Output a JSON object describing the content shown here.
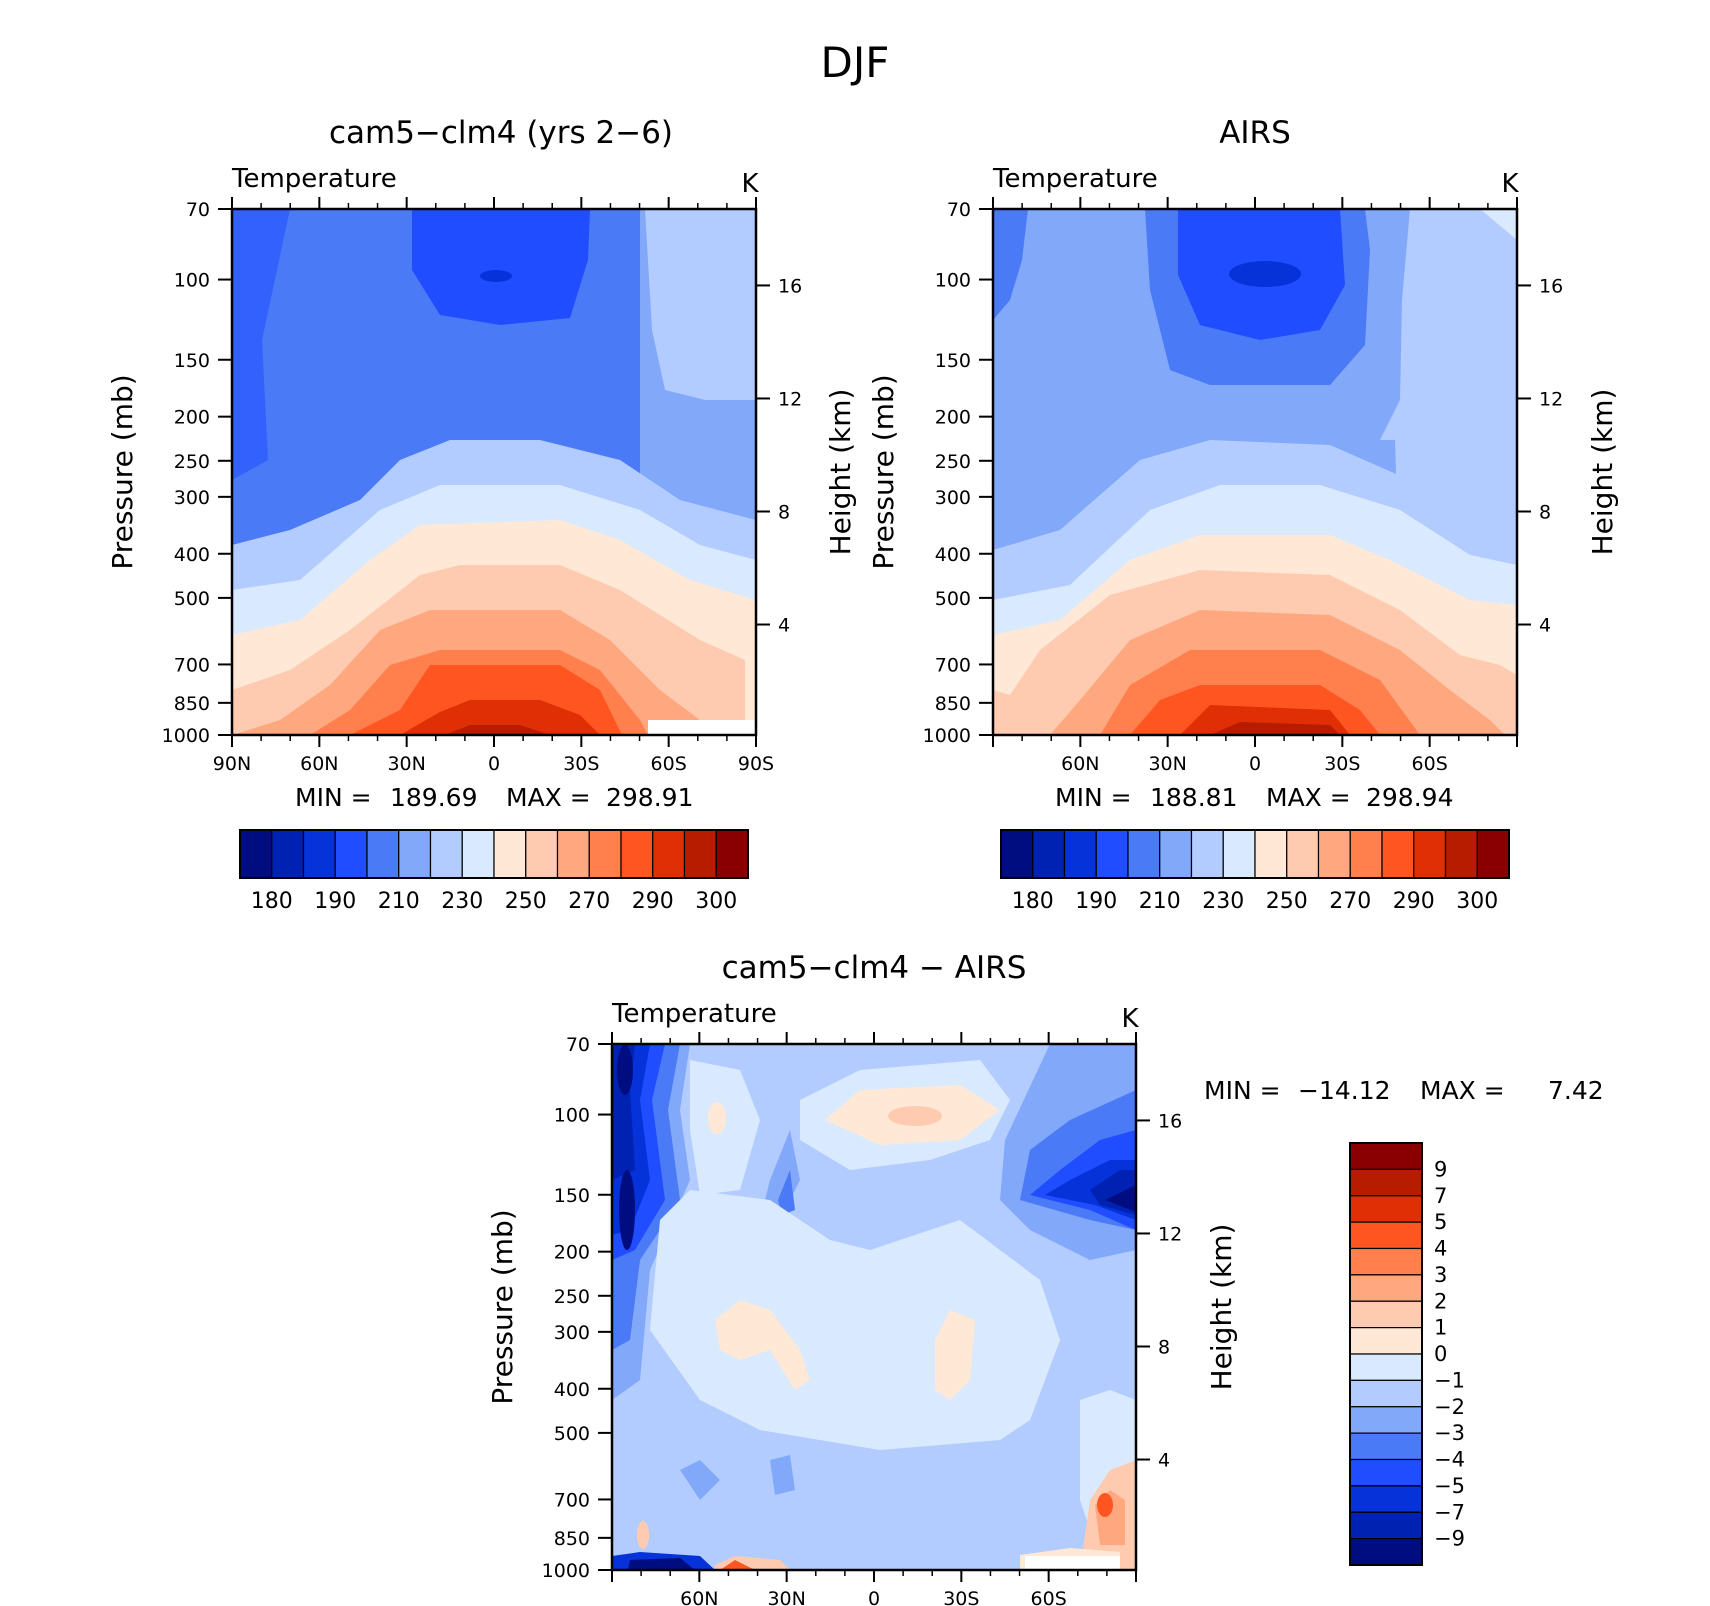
{
  "figure": {
    "title": "DJF"
  },
  "chart_data": [
    {
      "type": "heatmap",
      "title": "cam5−clm4 (yrs 2−6)",
      "variable": "Temperature",
      "units": "K",
      "ylabel": "Pressure (mb)",
      "ylabel_right": "Height (km)",
      "x_ticks": [
        "90N",
        "60N",
        "30N",
        "0",
        "30S",
        "60S",
        "90S"
      ],
      "x_tick_values": [
        90,
        60,
        30,
        0,
        -30,
        -60,
        -90
      ],
      "y_ticks": [
        "70",
        "100",
        "150",
        "200",
        "250",
        "300",
        "400",
        "500",
        "700",
        "850",
        "1000"
      ],
      "y_tick_values": [
        70,
        100,
        150,
        200,
        250,
        300,
        400,
        500,
        700,
        850,
        1000
      ],
      "height_ticks": [
        "16",
        "12",
        "8",
        "4"
      ],
      "height_tick_values": [
        16,
        12,
        8,
        4
      ],
      "xlim": [
        90,
        -90
      ],
      "ylim": [
        1000,
        70
      ],
      "y_scale": "log",
      "min_label": "MIN =",
      "min_value": "189.69",
      "max_label": "MAX =",
      "max_value": "298.91",
      "min": 189.69,
      "max": 298.91,
      "colorbar": {
        "orientation": "horizontal",
        "colors": [
          "#000d80",
          "#0022b3",
          "#0533d9",
          "#1f4dff",
          "#4a7af5",
          "#82a8fa",
          "#b3ccff",
          "#d9eaff",
          "#ffe8d6",
          "#ffcbb0",
          "#ffa880",
          "#ff804d",
          "#ff5521",
          "#e02f04",
          "#b81c00",
          "#8a0000"
        ],
        "labels": [
          "180",
          "190",
          "210",
          "230",
          "250",
          "270",
          "290",
          "300"
        ]
      }
    },
    {
      "type": "heatmap",
      "title": "AIRS",
      "variable": "Temperature",
      "units": "K",
      "ylabel": "Pressure (mb)",
      "ylabel_right": "Height (km)",
      "x_ticks": [
        "60N",
        "30N",
        "0",
        "30S",
        "60S"
      ],
      "x_tick_values": [
        60,
        30,
        0,
        -30,
        -60
      ],
      "y_ticks": [
        "70",
        "100",
        "150",
        "200",
        "250",
        "300",
        "400",
        "500",
        "700",
        "850",
        "1000"
      ],
      "y_tick_values": [
        70,
        100,
        150,
        200,
        250,
        300,
        400,
        500,
        700,
        850,
        1000
      ],
      "height_ticks": [
        "16",
        "12",
        "8",
        "4"
      ],
      "height_tick_values": [
        16,
        12,
        8,
        4
      ],
      "xlim": [
        90,
        -90
      ],
      "ylim": [
        1000,
        70
      ],
      "y_scale": "log",
      "min_label": "MIN =",
      "min_value": "188.81",
      "max_label": "MAX =",
      "max_value": "298.94",
      "min": 188.81,
      "max": 298.94,
      "colorbar": {
        "orientation": "horizontal",
        "colors": [
          "#000d80",
          "#0022b3",
          "#0533d9",
          "#1f4dff",
          "#4a7af5",
          "#82a8fa",
          "#b3ccff",
          "#d9eaff",
          "#ffe8d6",
          "#ffcbb0",
          "#ffa880",
          "#ff804d",
          "#ff5521",
          "#e02f04",
          "#b81c00",
          "#8a0000"
        ],
        "labels": [
          "180",
          "190",
          "210",
          "230",
          "250",
          "270",
          "290",
          "300"
        ]
      }
    },
    {
      "type": "heatmap",
      "title": "cam5−clm4 − AIRS",
      "variable": "Temperature",
      "units": "K",
      "ylabel": "Pressure (mb)",
      "ylabel_right": "Height (km)",
      "x_ticks": [
        "60N",
        "30N",
        "0",
        "30S",
        "60S"
      ],
      "x_tick_values": [
        60,
        30,
        0,
        -30,
        -60
      ],
      "y_ticks": [
        "70",
        "100",
        "150",
        "200",
        "250",
        "300",
        "400",
        "500",
        "700",
        "850",
        "1000"
      ],
      "y_tick_values": [
        70,
        100,
        150,
        200,
        250,
        300,
        400,
        500,
        700,
        850,
        1000
      ],
      "height_ticks": [
        "16",
        "12",
        "8",
        "4"
      ],
      "height_tick_values": [
        16,
        12,
        8,
        4
      ],
      "xlim": [
        90,
        -90
      ],
      "ylim": [
        1000,
        70
      ],
      "y_scale": "log",
      "min_label": "MIN =",
      "min_value": "−14.12",
      "max_label": "MAX =",
      "max_value": "7.42",
      "min": -14.12,
      "max": 7.42,
      "colorbar": {
        "orientation": "vertical",
        "colors": [
          "#8a0000",
          "#b81c00",
          "#e02f04",
          "#ff5521",
          "#ff804d",
          "#ffa880",
          "#ffcbb0",
          "#ffe8d6",
          "#d9eaff",
          "#b3ccff",
          "#82a8fa",
          "#4a7af5",
          "#1f4dff",
          "#0533d9",
          "#0022b3",
          "#000d80"
        ],
        "labels": [
          "9",
          "7",
          "5",
          "4",
          "3",
          "2",
          "1",
          "0",
          "−1",
          "−2",
          "−3",
          "−4",
          "−5",
          "−7",
          "−9"
        ]
      }
    }
  ]
}
